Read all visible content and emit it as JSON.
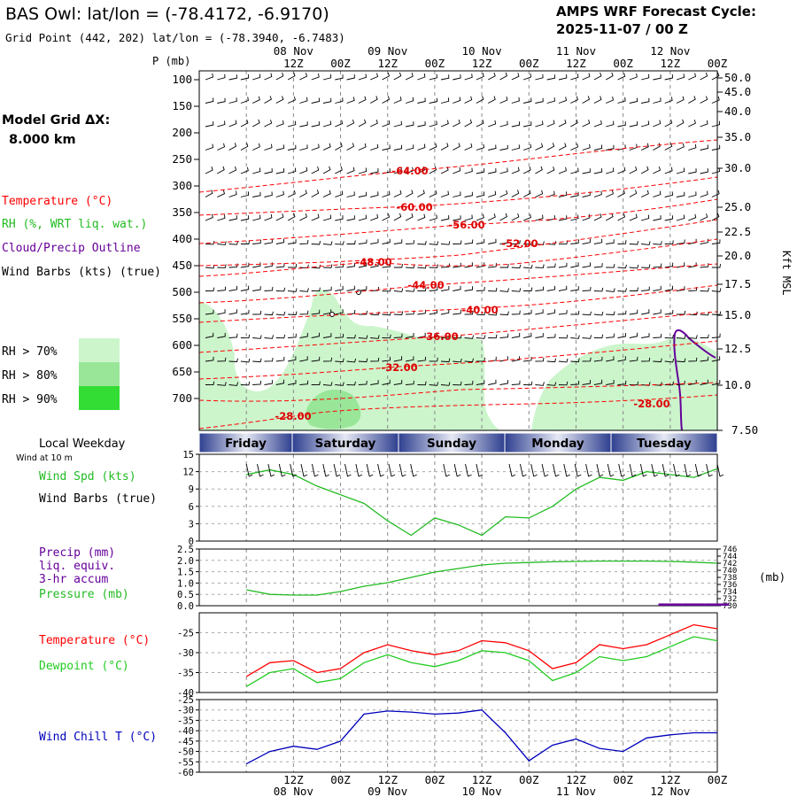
{
  "header": {
    "title": "BAS Owl:  lat/lon = (-78.4172, -6.9170)",
    "subtitle": "Grid Point (442, 202) lat/lon = (-78.3940, -6.7483)",
    "cycle_line1": "AMPS WRF Forecast Cycle:",
    "cycle_line2": "2025-11-07 / 00  Z"
  },
  "sidebar": {
    "grid_label": "Model Grid ΔX:",
    "grid_value": "8.000 km",
    "legend_temperature": "Temperature (°C)",
    "legend_rh": "RH (%, WRT liq. wat.)",
    "legend_cloud": "Cloud/Precip Outline",
    "legend_wind": "Wind Barbs (kts) (true)",
    "rh_levels": [
      "RH > 70%",
      "RH > 80%",
      "RH > 90%"
    ]
  },
  "colors": {
    "temperature": "#ff0000",
    "rh70": "#ccf5cc",
    "rh80": "#99e699",
    "rh90": "#33dd33",
    "cloud": "#660099",
    "wind_speed": "#22bb22",
    "pressure": "#22bb22",
    "precip": "#660099",
    "dewpoint": "#22cc22",
    "wind_chill": "#0000bb",
    "grid": "#888888"
  },
  "time_axis": {
    "hour_labels": [
      "12Z",
      "00Z",
      "12Z",
      "00Z",
      "12Z",
      "00Z",
      "12Z",
      "00Z",
      "12Z",
      "00Z"
    ],
    "date_labels": [
      "08 Nov",
      "09 Nov",
      "10 Nov",
      "11 Nov",
      "12 Nov"
    ],
    "weekdays": [
      "Friday",
      "Saturday",
      "Sunday",
      "Monday",
      "Tuesday"
    ],
    "weekday_header": "Local Weekday"
  },
  "chart_data": [
    {
      "type": "line",
      "name": "cross-section",
      "ylabel": "P (mb)",
      "y_right_label": "Kft MSL",
      "p_ticks": [
        100,
        150,
        200,
        250,
        300,
        350,
        400,
        450,
        500,
        550,
        600,
        650,
        700
      ],
      "kft_ticks": [
        "50.0",
        "45.0",
        "40.0",
        "35.0",
        "30.0",
        "25.0",
        "22.5",
        "20.0",
        "17.5",
        "15.0",
        "12.5",
        "10.0",
        "7.50"
      ],
      "isotherm_labels": [
        "-64.00",
        "-60.00",
        "-56.00",
        "-52.00",
        "-48.00",
        "-44.00",
        "-40.00",
        "-36.00",
        "-32.00",
        "-28.00",
        "-28.00"
      ]
    },
    {
      "type": "line",
      "name": "wind-speed",
      "subtitle": "Wind at 10 m",
      "label": "Wind Spd (kts)",
      "label2": "Wind Barbs (true)",
      "ylim": [
        0,
        15
      ],
      "yticks": [
        0,
        3,
        6,
        9,
        12,
        15
      ],
      "x_hours": [
        0,
        6,
        12,
        18,
        24,
        30,
        36,
        42,
        48,
        54,
        60,
        66,
        72,
        78,
        84,
        90,
        96,
        102,
        108,
        114,
        120
      ],
      "values": [
        11.5,
        12.3,
        11.5,
        9.5,
        8.0,
        6.5,
        3.5,
        1.0,
        4.0,
        2.8,
        1.0,
        4.2,
        4.0,
        6.0,
        9.0,
        11.0,
        10.5,
        12.0,
        11.5,
        11.0,
        12.5
      ]
    },
    {
      "type": "line",
      "name": "precip-pressure",
      "label_precip": "Precip (mm)",
      "label_precip2": "liq. equiv.",
      "label_precip3": "3-hr accum",
      "label_pressure": "Pressure (mb)",
      "right_unit": "(mb)",
      "precip_ylim": [
        0,
        2.5
      ],
      "precip_ticks": [
        "0.0",
        "0.5",
        "1.0",
        "1.5",
        "2.0",
        "2.5"
      ],
      "pressure_ylim": [
        730,
        746
      ],
      "pressure_ticks": [
        730,
        732,
        734,
        736,
        738,
        740,
        742,
        744,
        746
      ],
      "x_hours": [
        0,
        6,
        12,
        18,
        24,
        30,
        36,
        42,
        48,
        54,
        60,
        66,
        72,
        78,
        84,
        90,
        96,
        102,
        108,
        114,
        120
      ],
      "pressure_mb": [
        734.5,
        733.2,
        733.0,
        733.0,
        734.0,
        735.5,
        736.5,
        738.0,
        739.5,
        740.5,
        741.5,
        742.0,
        742.2,
        742.4,
        742.5,
        742.6,
        742.6,
        742.6,
        742.5,
        742.3,
        742.0
      ],
      "precip_mm": [
        0,
        0,
        0,
        0,
        0,
        0,
        0,
        0,
        0,
        0,
        0,
        0,
        0,
        0,
        0,
        0,
        0,
        0,
        0.1,
        0.1,
        0.1
      ]
    },
    {
      "type": "line",
      "name": "temperature-dewpoint",
      "label_temperature": "Temperature (°C)",
      "label_dewpoint": "Dewpoint (°C)",
      "ylim": [
        -40,
        -20
      ],
      "yticks": [
        -40,
        -35,
        -30,
        -25
      ],
      "x_hours": [
        0,
        6,
        12,
        18,
        24,
        30,
        36,
        42,
        48,
        54,
        60,
        66,
        72,
        78,
        84,
        90,
        96,
        102,
        108,
        114,
        120
      ],
      "temperature": [
        -36.0,
        -32.5,
        -32.0,
        -35.0,
        -34.0,
        -30.0,
        -28.0,
        -29.5,
        -30.5,
        -29.5,
        -27.0,
        -27.5,
        -29.5,
        -34.0,
        -32.5,
        -28.0,
        -29.0,
        -28.0,
        -25.5,
        -23.0,
        -24.0
      ],
      "dewpoint": [
        -38.5,
        -35.0,
        -34.0,
        -37.5,
        -36.5,
        -32.5,
        -30.5,
        -32.5,
        -33.5,
        -32.0,
        -29.5,
        -30.0,
        -32.0,
        -37.0,
        -35.0,
        -31.0,
        -32.0,
        -31.0,
        -28.5,
        -26.0,
        -27.0
      ]
    },
    {
      "type": "line",
      "name": "wind-chill",
      "label": "Wind Chill T (°C)",
      "ylim": [
        -60,
        -25
      ],
      "yticks": [
        -60,
        -55,
        -50,
        -45,
        -40,
        -35,
        -30,
        -25
      ],
      "x_hours": [
        0,
        6,
        12,
        18,
        24,
        30,
        36,
        42,
        48,
        54,
        60,
        66,
        72,
        78,
        84,
        90,
        96,
        102,
        108,
        114,
        120
      ],
      "values": [
        -56.0,
        -50.0,
        -47.5,
        -49.0,
        -45.0,
        -32.0,
        -30.5,
        -31.0,
        -32.0,
        -31.5,
        -30.0,
        -41.0,
        -54.5,
        -47.0,
        -44.0,
        -48.5,
        -50.0,
        -43.5,
        -42.0,
        -41.0,
        -41.0
      ]
    }
  ]
}
